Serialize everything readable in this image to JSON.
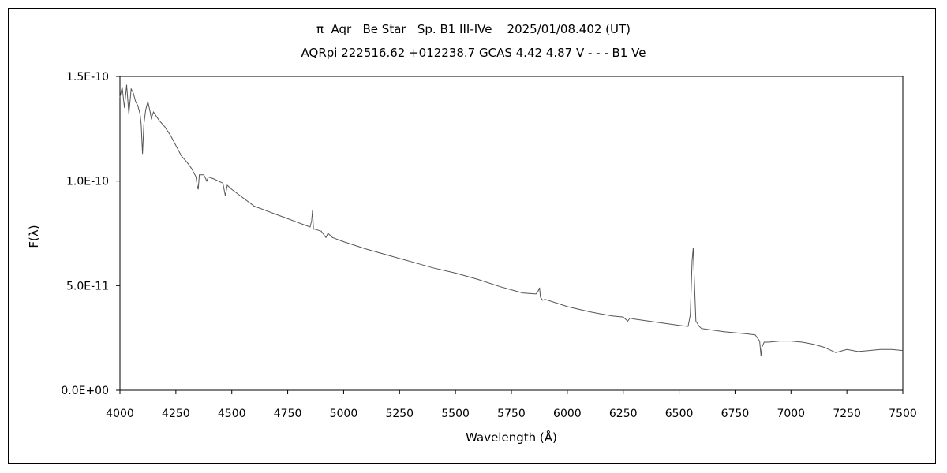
{
  "chart_data": {
    "type": "line",
    "title": "π  Aqr   Be Star   Sp. B1 III-IVe    2025/01/08.402 (UT)",
    "subtitle": "AQRpi 222516.62 +012238.7 GCAS 4.42 4.87 V - - - B1 Ve",
    "xlabel": "Wavelength (Å)",
    "ylabel": "F(λ)",
    "xlim": [
      4000,
      7500
    ],
    "ylim": [
      0,
      1.5e-10
    ],
    "x_ticks": [
      "4000",
      "4250",
      "4500",
      "4750",
      "5000",
      "5250",
      "5500",
      "5750",
      "6000",
      "6250",
      "6500",
      "6750",
      "7000",
      "7250",
      "7500"
    ],
    "y_ticks": [
      "0.0E+00",
      "5.0E-11",
      "1.0E-10",
      "1.5E-10"
    ],
    "y_tick_values": [
      0,
      5e-11,
      1e-10,
      1.5e-10
    ],
    "grid": false,
    "series": [
      {
        "color": "#555555",
        "x": [
          4000,
          4010,
          4020,
          4030,
          4040,
          4050,
          4060,
          4070,
          4080,
          4090,
          4095,
          4101,
          4107,
          4115,
          4125,
          4135,
          4140,
          4150,
          4175,
          4200,
          4225,
          4250,
          4275,
          4300,
          4320,
          4340,
          4345,
          4350,
          4355,
          4375,
          4388,
          4395,
          4420,
          4460,
          4471,
          4480,
          4500,
          4550,
          4600,
          4650,
          4700,
          4750,
          4800,
          4850,
          4857,
          4861,
          4865,
          4870,
          4900,
          4921,
          4930,
          4950,
          5000,
          5100,
          5200,
          5300,
          5400,
          5500,
          5600,
          5700,
          5800,
          5860,
          5870,
          5876,
          5880,
          5890,
          5900,
          6000,
          6100,
          6200,
          6250,
          6270,
          6280,
          6300,
          6400,
          6500,
          6540,
          6550,
          6558,
          6563,
          6567,
          6575,
          6590,
          6600,
          6700,
          6800,
          6840,
          6860,
          6866,
          6870,
          6880,
          6900,
          6950,
          7000,
          7050,
          7100,
          7150,
          7170,
          7180,
          7200,
          7250,
          7300,
          7350,
          7400,
          7450,
          7500
        ],
        "values": [
          1.4e-10,
          1.45e-10,
          1.35e-10,
          1.46e-10,
          1.32e-10,
          1.44e-10,
          1.42e-10,
          1.38e-10,
          1.36e-10,
          1.32e-10,
          1.27e-10,
          1.13e-10,
          1.27e-10,
          1.34e-10,
          1.38e-10,
          1.33e-10,
          1.3e-10,
          1.33e-10,
          1.29e-10,
          1.26e-10,
          1.22e-10,
          1.17e-10,
          1.12e-10,
          1.09e-10,
          1.06e-10,
          1.02e-10,
          9.8e-11,
          9.6e-11,
          1.03e-10,
          1.03e-10,
          1e-10,
          1.02e-10,
          1.01e-10,
          9.9e-11,
          9.3e-11,
          9.8e-11,
          9.6e-11,
          9.2e-11,
          8.8e-11,
          8.6e-11,
          8.4e-11,
          8.2e-11,
          8e-11,
          7.8e-11,
          8.1e-11,
          8.6e-11,
          7.7e-11,
          7.7e-11,
          7.6e-11,
          7.3e-11,
          7.5e-11,
          7.3e-11,
          7.1e-11,
          6.75e-11,
          6.45e-11,
          6.15e-11,
          5.85e-11,
          5.6e-11,
          5.3e-11,
          4.95e-11,
          4.65e-11,
          4.6e-11,
          4.75e-11,
          4.9e-11,
          4.45e-11,
          4.3e-11,
          4.35e-11,
          4e-11,
          3.75e-11,
          3.55e-11,
          3.5e-11,
          3.3e-11,
          3.45e-11,
          3.4e-11,
          3.25e-11,
          3.1e-11,
          3.05e-11,
          3.6e-11,
          6.2e-11,
          6.8e-11,
          5.5e-11,
          3.3e-11,
          3.05e-11,
          2.95e-11,
          2.8e-11,
          2.7e-11,
          2.65e-11,
          2.35e-11,
          1.65e-11,
          2.05e-11,
          2.3e-11,
          2.3e-11,
          2.35e-11,
          2.35e-11,
          2.3e-11,
          2.2e-11,
          2.05e-11,
          1.95e-11,
          1.9e-11,
          1.8e-11,
          1.95e-11,
          1.85e-11,
          1.9e-11,
          1.95e-11,
          1.95e-11,
          1.9e-11
        ]
      }
    ]
  }
}
